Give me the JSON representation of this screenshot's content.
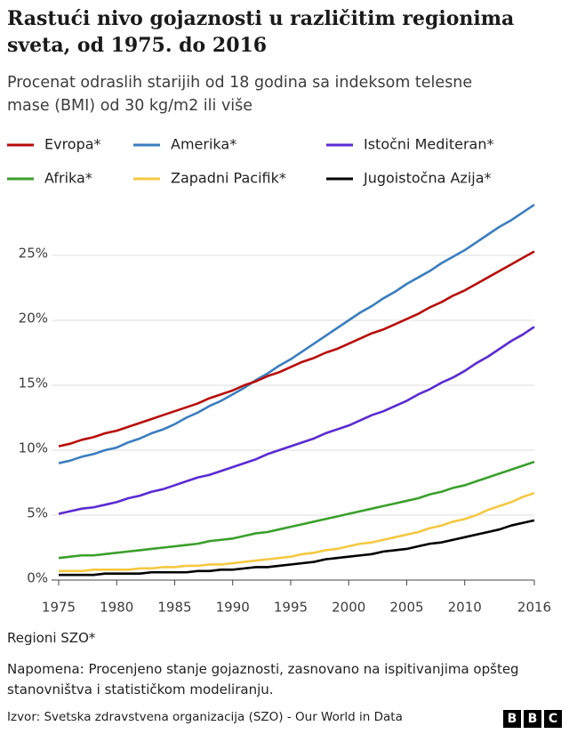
{
  "chart_data": {
    "type": "line",
    "title": "Rastući nivo gojaznosti u različitim regionima sveta, od 1975. do 2016",
    "subtitle": "Procenat odraslih starijih od 18 godina sa indeksom telesne mase (BMI) od 30 kg/m2 ili više",
    "legend_title": "Regioni SZO*",
    "note": "Napomena: Procenjeno stanje gojaznosti, zasnovano na ispitivanjima opšteg stanovništva i statističkom modeliranju.",
    "source": "Izvor: Svetska zdravstvena organizacija (SZO) - Our World in Data",
    "logo": [
      "B",
      "B",
      "C"
    ],
    "x": [
      1975,
      1976,
      1977,
      1978,
      1979,
      1980,
      1981,
      1982,
      1983,
      1984,
      1985,
      1986,
      1987,
      1988,
      1989,
      1990,
      1991,
      1992,
      1993,
      1994,
      1995,
      1996,
      1997,
      1998,
      1999,
      2000,
      2001,
      2002,
      2003,
      2004,
      2005,
      2006,
      2007,
      2008,
      2009,
      2010,
      2011,
      2012,
      2013,
      2014,
      2015,
      2016
    ],
    "xlim": [
      1975,
      2016
    ],
    "xticks": [
      1975,
      1980,
      1985,
      1990,
      1995,
      2000,
      2005,
      2010,
      2016
    ],
    "ylim": [
      0,
      29
    ],
    "yticks": [
      {
        "value": 0,
        "label": "0%"
      },
      {
        "value": 5,
        "label": "5%"
      },
      {
        "value": 10,
        "label": "10%"
      },
      {
        "value": 15,
        "label": "15%"
      },
      {
        "value": 20,
        "label": "20%"
      },
      {
        "value": 25,
        "label": "25%"
      }
    ],
    "grid": true,
    "series": [
      {
        "name": "Evropa*",
        "color": "#b80c09",
        "values": [
          10.3,
          10.5,
          10.8,
          11.0,
          11.3,
          11.5,
          11.8,
          12.1,
          12.4,
          12.7,
          13.0,
          13.3,
          13.6,
          14.0,
          14.3,
          14.6,
          15.0,
          15.3,
          15.7,
          16.0,
          16.4,
          16.8,
          17.1,
          17.5,
          17.8,
          18.2,
          18.6,
          19.0,
          19.3,
          19.7,
          20.1,
          20.5,
          21.0,
          21.4,
          21.9,
          22.3,
          22.8,
          23.3,
          23.8,
          24.3,
          24.8,
          25.3
        ]
      },
      {
        "name": "Amerika*",
        "color": "#3a7ebf",
        "values": [
          9.0,
          9.2,
          9.5,
          9.7,
          10.0,
          10.2,
          10.6,
          10.9,
          11.3,
          11.6,
          12.0,
          12.5,
          12.9,
          13.4,
          13.8,
          14.3,
          14.8,
          15.4,
          15.9,
          16.5,
          17.0,
          17.6,
          18.2,
          18.8,
          19.4,
          20.0,
          20.6,
          21.1,
          21.7,
          22.2,
          22.8,
          23.3,
          23.8,
          24.4,
          24.9,
          25.4,
          26.0,
          26.6,
          27.2,
          27.7,
          28.3,
          28.9
        ]
      },
      {
        "name": "Istočni Mediteran*",
        "color": "#5a2bd3",
        "values": [
          5.1,
          5.3,
          5.5,
          5.6,
          5.8,
          6.0,
          6.3,
          6.5,
          6.8,
          7.0,
          7.3,
          7.6,
          7.9,
          8.1,
          8.4,
          8.7,
          9.0,
          9.3,
          9.7,
          10.0,
          10.3,
          10.6,
          10.9,
          11.3,
          11.6,
          11.9,
          12.3,
          12.7,
          13.0,
          13.4,
          13.8,
          14.3,
          14.7,
          15.2,
          15.6,
          16.1,
          16.7,
          17.2,
          17.8,
          18.4,
          18.9,
          19.5
        ]
      },
      {
        "name": "Afrika*",
        "color": "#3aa02b",
        "values": [
          1.7,
          1.8,
          1.9,
          1.9,
          2.0,
          2.1,
          2.2,
          2.3,
          2.4,
          2.5,
          2.6,
          2.7,
          2.8,
          3.0,
          3.1,
          3.2,
          3.4,
          3.6,
          3.7,
          3.9,
          4.1,
          4.3,
          4.5,
          4.7,
          4.9,
          5.1,
          5.3,
          5.5,
          5.7,
          5.9,
          6.1,
          6.3,
          6.6,
          6.8,
          7.1,
          7.3,
          7.6,
          7.9,
          8.2,
          8.5,
          8.8,
          9.1
        ]
      },
      {
        "name": "Zapadni Pacifik*",
        "color": "#f5c842",
        "values": [
          0.7,
          0.7,
          0.7,
          0.8,
          0.8,
          0.8,
          0.8,
          0.9,
          0.9,
          1.0,
          1.0,
          1.1,
          1.1,
          1.2,
          1.2,
          1.3,
          1.4,
          1.5,
          1.6,
          1.7,
          1.8,
          2.0,
          2.1,
          2.3,
          2.4,
          2.6,
          2.8,
          2.9,
          3.1,
          3.3,
          3.5,
          3.7,
          4.0,
          4.2,
          4.5,
          4.7,
          5.0,
          5.4,
          5.7,
          6.0,
          6.4,
          6.7
        ]
      },
      {
        "name": "Jugoistočna Azija*",
        "color": "#000000",
        "values": [
          0.4,
          0.4,
          0.4,
          0.4,
          0.5,
          0.5,
          0.5,
          0.5,
          0.6,
          0.6,
          0.6,
          0.6,
          0.7,
          0.7,
          0.8,
          0.8,
          0.9,
          1.0,
          1.0,
          1.1,
          1.2,
          1.3,
          1.4,
          1.6,
          1.7,
          1.8,
          1.9,
          2.0,
          2.2,
          2.3,
          2.4,
          2.6,
          2.8,
          2.9,
          3.1,
          3.3,
          3.5,
          3.7,
          3.9,
          4.2,
          4.4,
          4.6
        ]
      }
    ]
  }
}
